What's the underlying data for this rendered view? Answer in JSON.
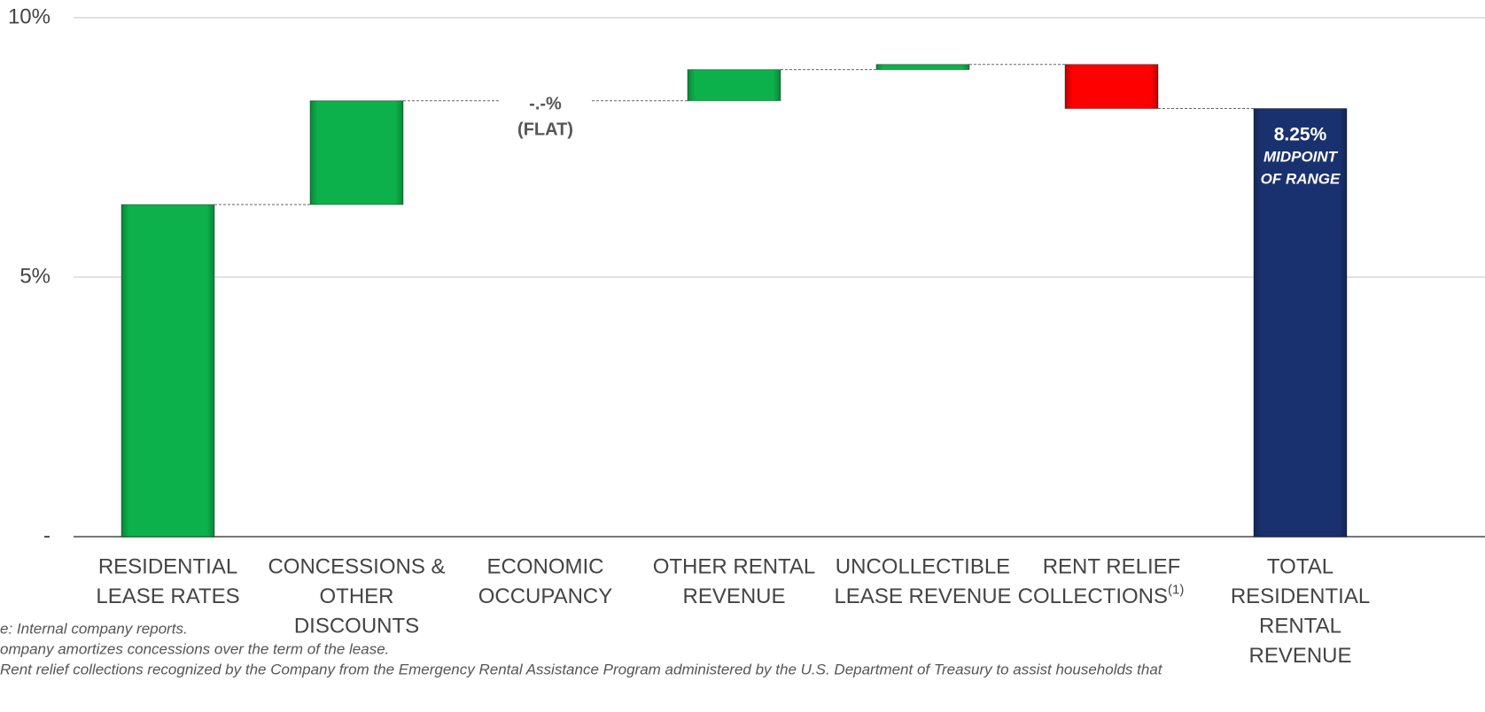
{
  "chart_data": {
    "type": "waterfall",
    "categories": [
      [
        "RESIDENTIAL",
        "LEASE RATES"
      ],
      [
        "CONCESSIONS &",
        "OTHER",
        "DISCOUNTS"
      ],
      [
        "ECONOMIC",
        "OCCUPANCY"
      ],
      [
        "OTHER RENTAL",
        "REVENUE"
      ],
      [
        "UNCOLLECTIBLE",
        "LEASE REVENUE"
      ],
      [
        "RENT RELIEF",
        "COLLECTIONS"
      ],
      [
        "TOTAL",
        "RESIDENTIAL",
        "RENTAL",
        "REVENUE"
      ]
    ],
    "category_notes": [
      null,
      null,
      null,
      null,
      null,
      "(1)",
      null
    ],
    "values": [
      6.4,
      2.0,
      0,
      0.6,
      0.1,
      -0.85,
      8.25
    ],
    "value_labels": [
      null,
      null,
      "-.-%",
      null,
      null,
      null,
      "8.25%"
    ],
    "is_total": [
      false,
      false,
      false,
      false,
      false,
      false,
      true
    ],
    "increase_color": "#0db14b",
    "decrease_color": "#ff0000",
    "total_color": "#1a3170",
    "annotations": [
      "(FLAT)",
      "MIDPOINT",
      "OF RANGE"
    ],
    "ylim": [
      0,
      10
    ],
    "yticks": [
      {
        "value": 0,
        "label": "-"
      },
      {
        "value": 5,
        "label": "5%"
      },
      {
        "value": 10,
        "label": "10%"
      }
    ],
    "grid": true,
    "footnotes": [
      "e:  Internal company reports.",
      "ompany amortizes concessions over the term of the lease.",
      "Rent relief collections recognized by the Company from the Emergency Rental Assistance Program administered by the U.S. Department of Treasury to assist households that"
    ]
  }
}
